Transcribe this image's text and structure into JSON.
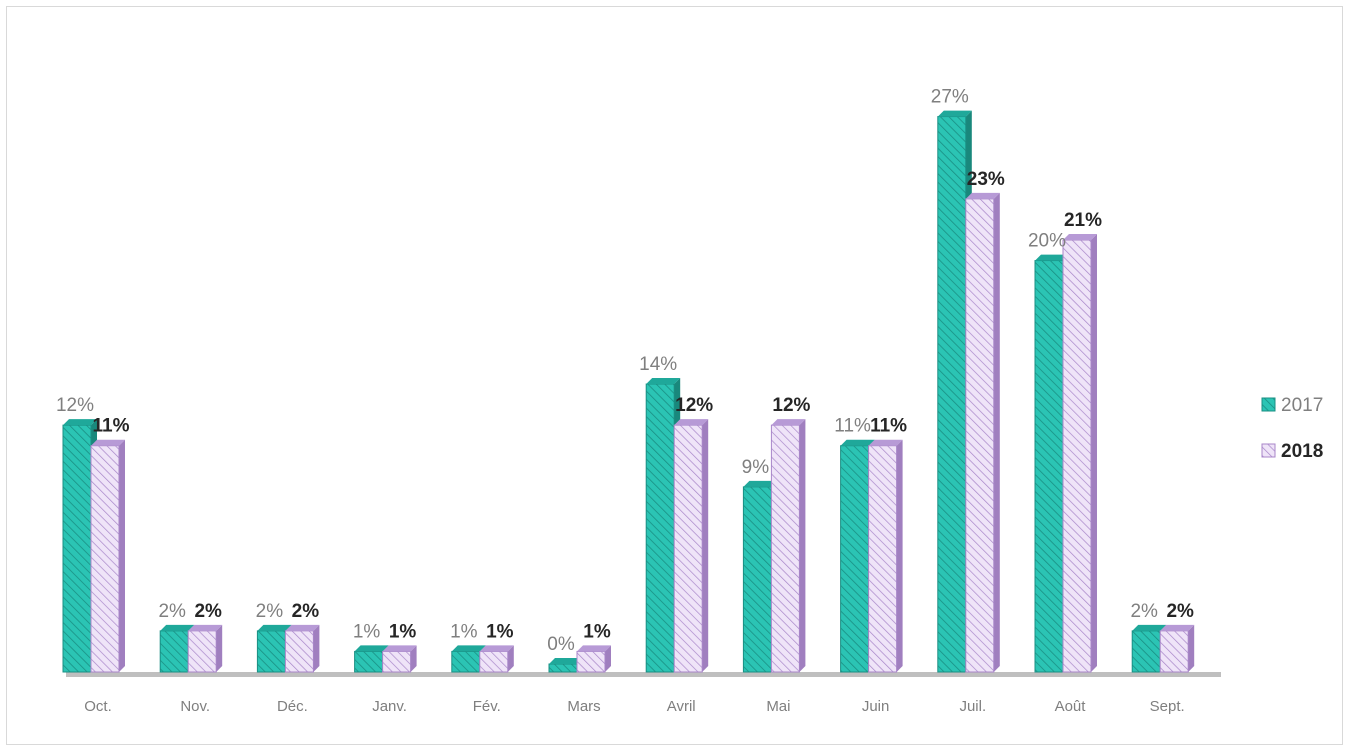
{
  "chart_data": {
    "type": "bar",
    "title": "",
    "xlabel": "",
    "ylabel": "",
    "categories": [
      "Oct.",
      "Nov.",
      "Déc.",
      "Janv.",
      "Fév.",
      "Mars",
      "Avril",
      "Mai",
      "Juin",
      "Juil.",
      "Août",
      "Sept."
    ],
    "series": [
      {
        "name": "2017",
        "values": [
          12,
          2,
          2,
          1,
          1,
          0,
          14,
          9,
          11,
          27,
          20,
          2
        ],
        "labels": [
          "12%",
          "2%",
          "2%",
          "1%",
          "1%",
          "0%",
          "14%",
          "9%",
          "11%",
          "27%",
          "20%",
          "2%"
        ],
        "color": "#2bc4b4",
        "hatch_color": "#1a8f83"
      },
      {
        "name": "2018",
        "values": [
          11,
          2,
          2,
          1,
          1,
          1,
          12,
          12,
          11,
          23,
          21,
          2
        ],
        "labels": [
          "11%",
          "2%",
          "2%",
          "1%",
          "1%",
          "1%",
          "12%",
          "12%",
          "11%",
          "23%",
          "21%",
          "2%"
        ],
        "color": "#e7d7f5",
        "hatch_color": "#a886c9"
      }
    ],
    "ylim": [
      0,
      28
    ],
    "grid": false,
    "legend": "right",
    "axis_color": "#bfbfbf"
  }
}
